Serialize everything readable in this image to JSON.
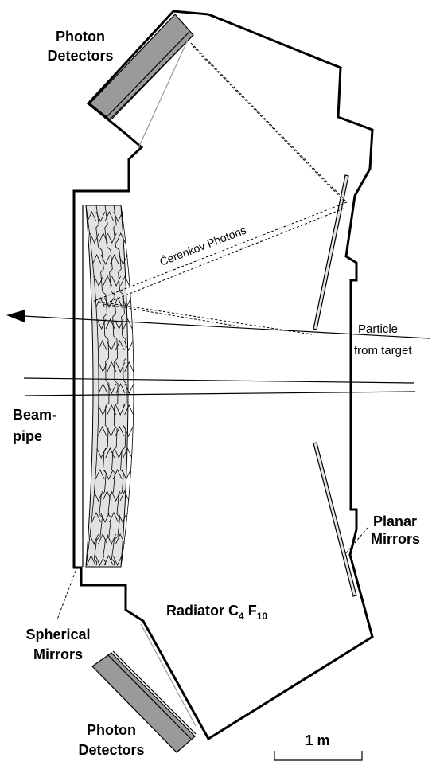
{
  "labels": {
    "photon_detectors_top": [
      "Photon",
      "Detectors"
    ],
    "cerenkov_photons": "Čerenkov Photons",
    "particle_from_target": [
      "Particle",
      "from target"
    ],
    "beam_pipe": [
      "Beam-",
      "pipe"
    ],
    "planar_mirrors": [
      "Planar",
      "Mirrors"
    ],
    "radiator_prefix": "Radiator C",
    "radiator_sub1": "4",
    "radiator_mid": " F",
    "radiator_sub2": "10",
    "spherical_mirrors": [
      "Spherical",
      "Mirrors"
    ],
    "photon_detectors_bottom": [
      "Photon",
      "Detectors"
    ],
    "scale_label": "1 m"
  },
  "colors": {
    "detector_fill": "#9a9a9a",
    "mirror_fill": "#e2e2e2",
    "outline": "#000000"
  }
}
